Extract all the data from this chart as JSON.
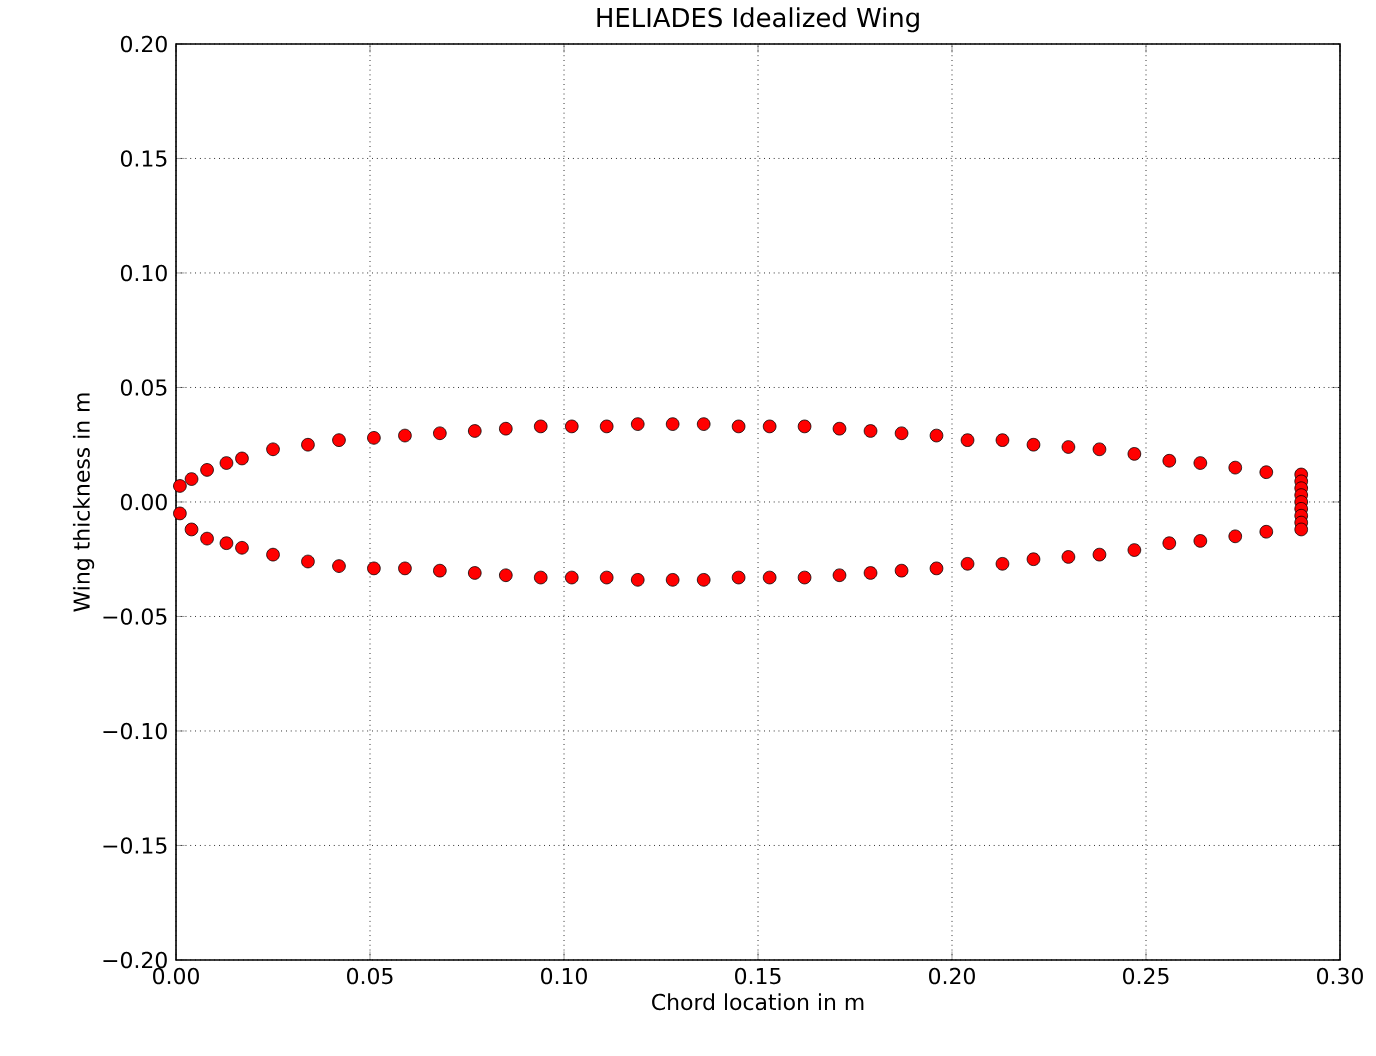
{
  "chart_data": {
    "type": "scatter",
    "title": "HELIADES Idealized Wing",
    "xlabel": "Chord location in m",
    "ylabel": "Wing thickness in m",
    "x": [
      0.001,
      0.004,
      0.008,
      0.013,
      0.017,
      0.025,
      0.034,
      0.042,
      0.051,
      0.059,
      0.068,
      0.077,
      0.085,
      0.094,
      0.102,
      0.111,
      0.119,
      0.128,
      0.136,
      0.145,
      0.153,
      0.162,
      0.171,
      0.179,
      0.187,
      0.196,
      0.204,
      0.213,
      0.221,
      0.23,
      0.238,
      0.247,
      0.256,
      0.264,
      0.273,
      0.281,
      0.29,
      0.29,
      0.29,
      0.29,
      0.29,
      0.29,
      0.29,
      0.29,
      0.29,
      0.281,
      0.273,
      0.264,
      0.256,
      0.247,
      0.238,
      0.23,
      0.221,
      0.213,
      0.204,
      0.196,
      0.187,
      0.179,
      0.171,
      0.162,
      0.153,
      0.145,
      0.136,
      0.128,
      0.119,
      0.111,
      0.102,
      0.094,
      0.085,
      0.077,
      0.068,
      0.059,
      0.051,
      0.042,
      0.034,
      0.025,
      0.017,
      0.013,
      0.008,
      0.004,
      0.001
    ],
    "series": [
      {
        "color": "#ff0000",
        "values": [
          0.007,
          0.01,
          0.014,
          0.017,
          0.019,
          0.023,
          0.025,
          0.027,
          0.028,
          0.029,
          0.03,
          0.031,
          0.032,
          0.033,
          0.033,
          0.033,
          0.034,
          0.034,
          0.034,
          0.033,
          0.033,
          0.033,
          0.032,
          0.031,
          0.03,
          0.029,
          0.027,
          0.027,
          0.025,
          0.024,
          0.023,
          0.021,
          0.018,
          0.017,
          0.015,
          0.013,
          0.012,
          0.009,
          0.006,
          0.003,
          0,
          -0.003,
          -0.006,
          -0.009,
          -0.012,
          -0.013,
          -0.015,
          -0.017,
          -0.018,
          -0.021,
          -0.023,
          -0.024,
          -0.025,
          -0.027,
          -0.027,
          -0.029,
          -0.03,
          -0.031,
          -0.032,
          -0.033,
          -0.033,
          -0.033,
          -0.034,
          -0.034,
          -0.034,
          -0.033,
          -0.033,
          -0.033,
          -0.032,
          -0.031,
          -0.03,
          -0.029,
          -0.029,
          -0.028,
          -0.026,
          -0.023,
          -0.02,
          -0.018,
          -0.016,
          -0.012,
          -0.005
        ]
      }
    ],
    "xlim": [
      0,
      0.3
    ],
    "ylim": [
      -0.2,
      0.2
    ],
    "xticks": [
      {
        "value": 0,
        "label": "0.00"
      },
      {
        "value": 0.05,
        "label": "0.05"
      },
      {
        "value": 0.1,
        "label": "0.10"
      },
      {
        "value": 0.15,
        "label": "0.15"
      },
      {
        "value": 0.2,
        "label": "0.20"
      },
      {
        "value": 0.25,
        "label": "0.25"
      },
      {
        "value": 0.3,
        "label": "0.30"
      }
    ],
    "yticks": [
      {
        "value": -0.2,
        "label": "−0.20"
      },
      {
        "value": -0.15,
        "label": "−0.15"
      },
      {
        "value": -0.1,
        "label": "−0.10"
      },
      {
        "value": -0.05,
        "label": "−0.05"
      },
      {
        "value": 0,
        "label": "0.00"
      },
      {
        "value": 0.05,
        "label": "0.05"
      },
      {
        "value": 0.1,
        "label": "0.10"
      },
      {
        "value": 0.15,
        "label": "0.15"
      },
      {
        "value": 0.2,
        "label": "0.20"
      }
    ],
    "grid": true,
    "marker": "circle"
  }
}
